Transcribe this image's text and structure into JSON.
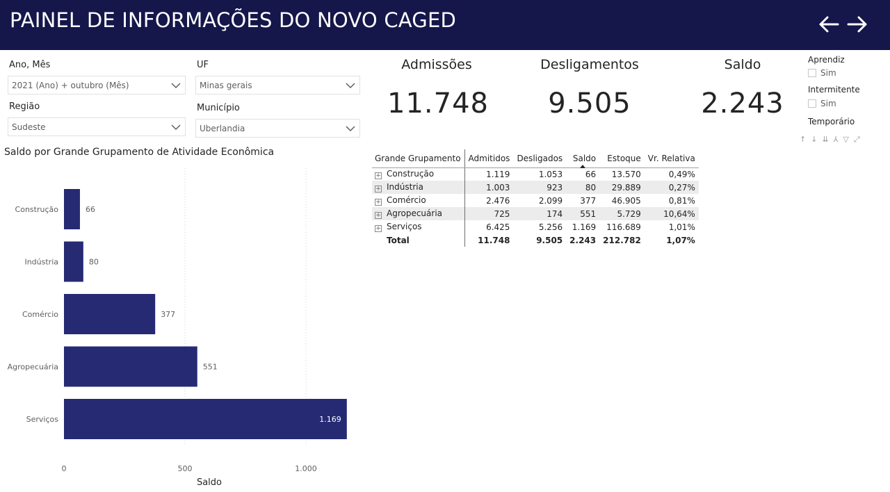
{
  "header": {
    "title": "PAINEL DE INFORMAÇÕES DO NOVO CAGED",
    "back_icon": "arrow-left-icon",
    "forward_icon": "arrow-right-icon"
  },
  "slicers": {
    "ano_mes": {
      "label": "Ano, Mês",
      "value": "2021 (Ano) + outubro (Mês)"
    },
    "uf": {
      "label": "UF",
      "value": "Minas gerais"
    },
    "regiao": {
      "label": "Região",
      "value": "Sudeste"
    },
    "municipio": {
      "label": "Município",
      "value": "Uberlandia"
    }
  },
  "kpis": {
    "admissoes": {
      "label": "Admissões",
      "value": "11.748"
    },
    "desligamentos": {
      "label": "Desligamentos",
      "value": "9.505"
    },
    "saldo": {
      "label": "Saldo",
      "value": "2.243"
    }
  },
  "filters": {
    "aprendiz": {
      "title": "Aprendiz",
      "option": "Sim"
    },
    "intermitente": {
      "title": "Intermitente",
      "option": "Sim"
    },
    "temporario": {
      "title": "Temporário"
    }
  },
  "colors": {
    "header_bg": "#15164a",
    "bar": "#252a73"
  },
  "matrix": {
    "headers": [
      "Grande Grupamento",
      "Admitidos",
      "Desligados",
      "Saldo",
      "Estoque",
      "Vr. Relativa"
    ],
    "rows": [
      [
        "Construção",
        "1.119",
        "1.053",
        "66",
        "13.570",
        "0,49%"
      ],
      [
        "Indústria",
        "1.003",
        "923",
        "80",
        "29.889",
        "0,27%"
      ],
      [
        "Comércio",
        "2.476",
        "2.099",
        "377",
        "46.905",
        "0,81%"
      ],
      [
        "Agropecuária",
        "725",
        "174",
        "551",
        "5.729",
        "10,64%"
      ],
      [
        "Serviços",
        "6.425",
        "5.256",
        "1.169",
        "116.689",
        "1,01%"
      ]
    ],
    "total": [
      "Total",
      "11.748",
      "9.505",
      "2.243",
      "212.782",
      "1,07%"
    ]
  },
  "chart_data": {
    "type": "bar",
    "orientation": "horizontal",
    "title": "Saldo por Grande Grupamento de Atividade Econômica",
    "categories": [
      "Construção",
      "Indústria",
      "Comércio",
      "Agropecuária",
      "Serviços"
    ],
    "values": [
      66,
      80,
      377,
      551,
      1169
    ],
    "value_labels": [
      "66",
      "80",
      "377",
      "551",
      "1.169"
    ],
    "xlabel": "Saldo",
    "ylabel": "",
    "xlim": [
      0,
      1200
    ],
    "x_ticks": [
      0,
      500,
      1000
    ],
    "x_tick_labels": [
      "0",
      "500",
      "1.000"
    ],
    "grid": "vertical dotted"
  }
}
